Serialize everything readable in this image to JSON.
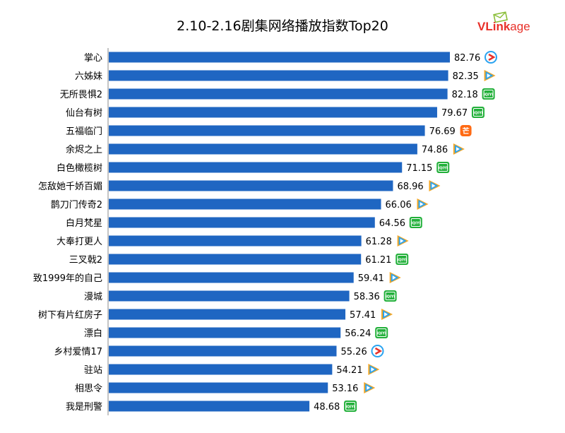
{
  "title": "2.10-2.16剧集网络播放指数Top20",
  "logo": {
    "text_v": "VLink",
    "text_rest": "age"
  },
  "colors": {
    "bar": "#1f66c2",
    "axis": "#888888",
    "tencent_orange": "#f5a623",
    "tencent_blue": "#2aa3f0",
    "youku_red": "#e8312a",
    "iqiyi_green": "#22b03a",
    "mgtv_orange": "#ff6a13"
  },
  "chart_data": {
    "type": "bar",
    "orientation": "horizontal",
    "title": "2.10-2.16剧集网络播放指数Top20",
    "categories": [
      "掌心",
      "六姊妹",
      "无所畏惧2",
      "仙台有树",
      "五福临门",
      "余烬之上",
      "白色橄榄树",
      "怎敌她千娇百媚",
      "鹊刀门传奇2",
      "白月梵星",
      "大奉打更人",
      "三叉戟2",
      "致1999年的自己",
      "漫城",
      "树下有片红房子",
      "漂白",
      "乡村爱情17",
      "驻站",
      "相思令",
      "我是刑警"
    ],
    "values": [
      82.76,
      82.35,
      82.18,
      79.67,
      76.69,
      74.86,
      71.15,
      68.96,
      66.06,
      64.56,
      61.28,
      61.21,
      59.41,
      58.36,
      57.41,
      56.24,
      55.26,
      54.21,
      53.16,
      48.68
    ],
    "value_labels": [
      "82.76",
      "82.35",
      "82.18",
      "79.67",
      "76.69",
      "74.86",
      "71.15",
      "68.96",
      "66.06",
      "64.56",
      "61.28",
      "61.21",
      "59.41",
      "58.36",
      "57.41",
      "56.24",
      "55.26",
      "54.21",
      "53.16",
      "48.68"
    ],
    "platform_icons": [
      "youku-icon",
      "tencent-video-icon",
      "iqiyi-icon",
      "iqiyi-icon",
      "mgtv-icon",
      "tencent-video-icon",
      "iqiyi-icon",
      "tencent-video-icon",
      "tencent-video-icon",
      "iqiyi-icon",
      "tencent-video-icon",
      "iqiyi-icon",
      "tencent-video-icon",
      "iqiyi-icon",
      "tencent-video-icon",
      "iqiyi-icon",
      "youku-icon",
      "tencent-video-icon",
      "tencent-video-icon",
      "iqiyi-icon"
    ],
    "icon_texts": {
      "iqiyi-icon": "iQIYI",
      "mgtv-icon": "芒"
    },
    "xlim": [
      0,
      90
    ],
    "grid": false,
    "legend": "none"
  }
}
